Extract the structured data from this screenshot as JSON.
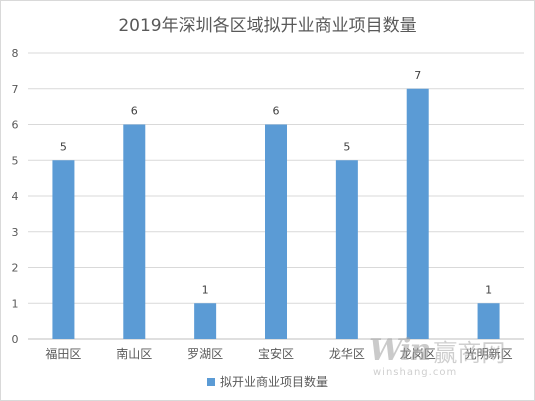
{
  "chart_data": {
    "type": "bar",
    "title": "2019年深圳各区域拟开业商业项目数量",
    "categories": [
      "福田区",
      "南山区",
      "罗湖区",
      "宝安区",
      "龙华区",
      "龙岗区",
      "光明新区"
    ],
    "series": [
      {
        "name": "拟开业商业项目数量",
        "values": [
          5,
          6,
          1,
          6,
          5,
          7,
          1
        ]
      }
    ],
    "ylim": [
      0,
      8
    ],
    "yticks": [
      0,
      1,
      2,
      3,
      4,
      5,
      6,
      7,
      8
    ],
    "grid": true,
    "data_labels": true,
    "legend_position": "bottom",
    "colors": {
      "bar": "#5b9bd5",
      "grid": "#d9d9d9",
      "axis": "#bfbfbf",
      "text": "#595959"
    }
  },
  "watermark": {
    "logo": "Win",
    "text": "赢商网",
    "url": "winshang.com"
  }
}
